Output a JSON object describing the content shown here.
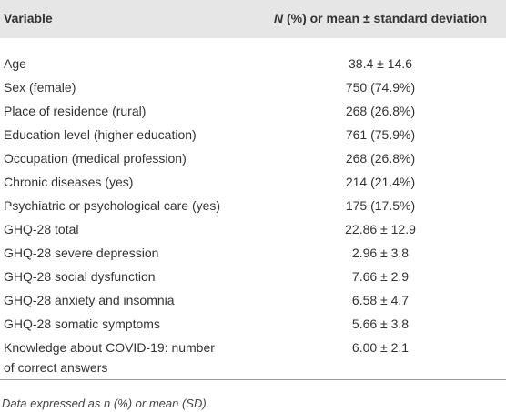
{
  "table": {
    "header": {
      "variable": "Variable",
      "value": [
        "N",
        " (%) or mean ± standard deviation"
      ]
    },
    "rows": [
      [
        [
          "Age"
        ],
        "38.4 ± 14.6"
      ],
      [
        [
          "Sex (female)"
        ],
        "750 (74.9%)"
      ],
      [
        [
          "Place of residence (rural)"
        ],
        "268 (26.8%)"
      ],
      [
        [
          "Education level (higher education)"
        ],
        "761 (75.9%)"
      ],
      [
        [
          "Occupation (medical profession)"
        ],
        "268 (26.8%)"
      ],
      [
        [
          "Chronic diseases (yes)"
        ],
        "214 (21.4%)"
      ],
      [
        [
          "Psychiatric or psychological care (yes)"
        ],
        "175 (17.5%)"
      ],
      [
        [
          "GHQ-28 total"
        ],
        "22.86 ± 12.9"
      ],
      [
        [
          "GHQ-28 severe depression"
        ],
        "2.96 ± 3.8"
      ],
      [
        [
          "GHQ-28 social dysfunction"
        ],
        "7.66 ± 2.9"
      ],
      [
        [
          "GHQ-28 anxiety and insomnia"
        ],
        "6.58 ± 4.7"
      ],
      [
        [
          "GHQ-28 somatic symptoms"
        ],
        "5.66 ± 3.8"
      ],
      [
        [
          "Knowledge about COVID-19: number",
          "of correct answers"
        ],
        "6.00 ± 2.1"
      ]
    ]
  },
  "footnote": "Data expressed as n (%) or mean (SD)."
}
